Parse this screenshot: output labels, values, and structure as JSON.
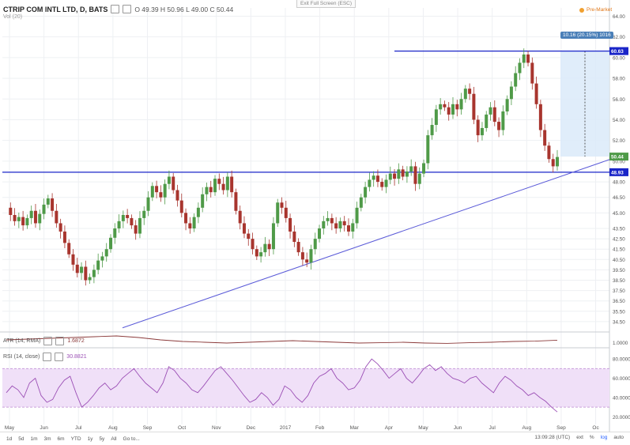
{
  "header": {
    "title": "CTRIP COM INTL LTD, D, BATS",
    "ohlc": "O 49.39  H 50.96  L 49.00  C 50.44",
    "sub": "Vol (20)",
    "fullscreen": "Exit Full Screen (ESC)",
    "pre_market": "Pre-Market"
  },
  "atr": {
    "label": "ATR (14, RMA)",
    "value": "1.6872"
  },
  "rsi": {
    "label": "RSI (14, close)",
    "value": "30.8821"
  },
  "measure_label": "10.16 (20.15%) 1016",
  "price_tags": {
    "top": "60.63",
    "current": "50.44",
    "bottom": "48.93"
  },
  "timeframes": [
    "1d",
    "5d",
    "1m",
    "3m",
    "6m",
    "YTD",
    "1y",
    "5y",
    "All",
    "Go to..."
  ],
  "status": {
    "time": "13:09:28 (UTC)",
    "ext": "ext",
    "pct": "%",
    "log": "log",
    "auto": "auto"
  },
  "colors": {
    "up": "#4f9a48",
    "down": "#a8352e",
    "hline": "#1a25c8",
    "trend": "#5a5ad8",
    "rsi": "#9b4fb5",
    "atr": "#8b3a3a",
    "measure": "#dbeaf9"
  },
  "chart_data": {
    "type": "candlestick",
    "y_ticks": [
      64.0,
      62.0,
      60.0,
      58.0,
      56.0,
      54.0,
      52.0,
      50.0,
      48.0,
      46.5,
      45.0,
      43.5,
      42.5,
      41.5,
      40.5,
      39.5,
      38.5,
      37.5,
      36.5,
      35.5,
      34.5
    ],
    "ylim": [
      33.5,
      64.8
    ],
    "x_labels": [
      "May",
      "Jun",
      "Jul",
      "Aug",
      "Sep",
      "Oct",
      "Nov",
      "Dec",
      "2017",
      "Feb",
      "Mar",
      "Apr",
      "May",
      "Jun",
      "Jul",
      "Aug",
      "Sep",
      "Oc"
    ],
    "close_path": [
      45.5,
      44.8,
      44.2,
      44.6,
      43.8,
      44.5,
      45.2,
      44.0,
      44.9,
      45.8,
      46.4,
      45.2,
      44.0,
      43.2,
      42.1,
      41.0,
      40.0,
      39.2,
      39.8,
      38.5,
      38.8,
      39.5,
      40.4,
      40.8,
      41.5,
      42.6,
      43.5,
      44.2,
      44.8,
      44.5,
      43.8,
      43.0,
      44.5,
      45.2,
      46.5,
      47.6,
      47.0,
      46.5,
      47.8,
      48.5,
      47.2,
      46.2,
      45.0,
      44.0,
      43.5,
      44.6,
      45.5,
      46.8,
      47.5,
      47.0,
      48.3,
      47.8,
      47.2,
      48.5,
      47.0,
      45.2,
      44.0,
      43.0,
      42.5,
      41.5,
      40.8,
      41.2,
      42.0,
      41.5,
      44.0,
      46.0,
      45.5,
      44.5,
      43.2,
      42.2,
      41.2,
      40.5,
      40.2,
      41.5,
      42.5,
      43.5,
      44.2,
      44.5,
      44.0,
      43.5,
      44.2,
      43.8,
      43.2,
      44.0,
      45.5,
      46.5,
      47.5,
      48.2,
      48.6,
      48.0,
      47.5,
      48.2,
      48.8,
      48.3,
      49.2,
      48.5,
      49.0,
      49.5,
      47.8,
      48.8,
      49.8,
      52.5,
      53.5,
      55.0,
      55.5,
      55.2,
      54.5,
      55.5,
      55.0,
      56.0,
      57.0,
      56.5,
      54.0,
      52.5,
      53.2,
      54.5,
      55.2,
      53.8,
      53.0,
      54.8,
      56.0,
      57.2,
      58.5,
      59.5,
      60.3,
      59.5,
      57.5,
      55.5,
      53.0,
      51.5,
      50.2,
      49.5,
      50.4
    ],
    "atr_points": [
      1.7,
      1.75,
      1.8,
      1.85,
      1.9,
      1.95,
      1.85,
      1.7,
      1.6,
      1.55,
      1.5,
      1.55,
      1.6,
      1.65,
      1.6,
      1.55,
      1.5,
      1.52,
      1.55,
      1.5,
      1.48,
      1.52,
      1.55,
      1.6,
      1.62,
      1.68
    ],
    "rsi_ticks": [
      80.0,
      60.0,
      40.0,
      20.0
    ],
    "rsi_band": [
      30,
      70
    ],
    "rsi_points": [
      45,
      52,
      48,
      40,
      55,
      60,
      42,
      35,
      38,
      50,
      58,
      62,
      45,
      30,
      35,
      42,
      50,
      55,
      48,
      52,
      60,
      65,
      70,
      62,
      55,
      50,
      45,
      55,
      72,
      68,
      60,
      55,
      48,
      45,
      52,
      60,
      68,
      72,
      65,
      58,
      50,
      42,
      35,
      38,
      45,
      40,
      32,
      38,
      52,
      48,
      40,
      35,
      42,
      55,
      62,
      65,
      70,
      60,
      55,
      48,
      50,
      58,
      72,
      80,
      75,
      68,
      60,
      65,
      70,
      60,
      55,
      62,
      70,
      74,
      68,
      72,
      65,
      60,
      58,
      55,
      60,
      62,
      55,
      50,
      45,
      55,
      62,
      58,
      52,
      48,
      42,
      45,
      40,
      36,
      30,
      25
    ]
  }
}
